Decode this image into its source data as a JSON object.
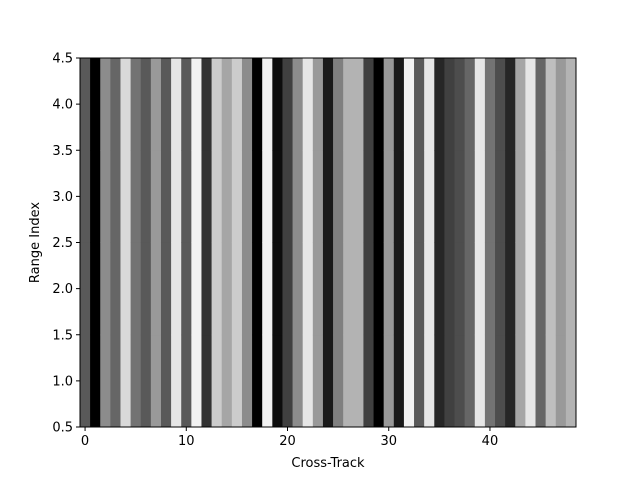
{
  "chart_data": {
    "type": "heatmap",
    "colormap": "gray",
    "title": "",
    "xlabel": "Cross-Track",
    "ylabel": "Range Index",
    "xlim": [
      -0.5,
      48.5
    ],
    "ylim": [
      0.5,
      4.5
    ],
    "x_ticks": [
      0,
      10,
      20,
      30,
      40
    ],
    "x_tick_labels": [
      "0",
      "10",
      "20",
      "30",
      "40"
    ],
    "y_ticks": [
      0.5,
      1.0,
      1.5,
      2.0,
      2.5,
      3.0,
      3.5,
      4.0,
      4.5
    ],
    "y_tick_labels": [
      "0.5",
      "1.0",
      "1.5",
      "2.0",
      "2.5",
      "3.0",
      "3.5",
      "4.0",
      "4.5"
    ],
    "rows": [
      1,
      2,
      3,
      4
    ],
    "columns": [
      0,
      1,
      2,
      3,
      4,
      5,
      6,
      7,
      8,
      9,
      10,
      11,
      12,
      13,
      14,
      15,
      16,
      17,
      18,
      19,
      20,
      21,
      22,
      23,
      24,
      25,
      26,
      27,
      28,
      29,
      30,
      31,
      32,
      33,
      34,
      35,
      36,
      37,
      38,
      39,
      40,
      41,
      42,
      43,
      44,
      45,
      46,
      47,
      48
    ],
    "column_intensity": [
      0.35,
      0.0,
      0.55,
      0.4,
      0.85,
      0.45,
      0.35,
      0.6,
      0.35,
      0.9,
      0.35,
      0.95,
      0.2,
      0.8,
      0.65,
      0.8,
      0.55,
      0.0,
      0.95,
      0.05,
      0.25,
      0.55,
      0.9,
      0.6,
      0.1,
      0.5,
      0.7,
      0.7,
      0.25,
      0.0,
      0.6,
      0.1,
      0.95,
      0.35,
      0.9,
      0.15,
      0.25,
      0.3,
      0.4,
      0.9,
      0.45,
      0.3,
      0.15,
      0.65,
      0.9,
      0.4,
      0.75,
      0.6,
      0.7
    ],
    "grid": false,
    "legend": "none"
  }
}
